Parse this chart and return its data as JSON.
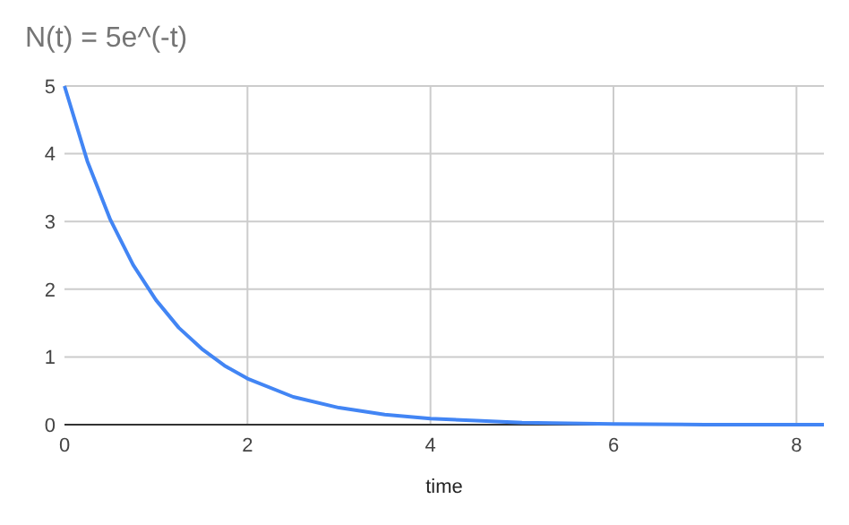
{
  "chart_data": {
    "type": "line",
    "title": "N(t) = 5e^(-t)",
    "xlabel": "time",
    "x": [
      0,
      0.25,
      0.5,
      0.75,
      1,
      1.25,
      1.5,
      1.75,
      2,
      2.5,
      3,
      3.5,
      4,
      4.5,
      5,
      5.5,
      6,
      7,
      8.3
    ],
    "series": [
      {
        "color": "#4285f4",
        "values": [
          5,
          3.89,
          3.03,
          2.36,
          1.84,
          1.43,
          1.12,
          0.87,
          0.68,
          0.41,
          0.25,
          0.15,
          0.09,
          0.06,
          0.03,
          0.02,
          0.01,
          0,
          0
        ]
      }
    ],
    "xlim": [
      0,
      8.3
    ],
    "xticks": [
      0,
      2,
      4,
      6,
      8
    ],
    "ylim": [
      0,
      5
    ],
    "yticks": [
      0,
      1,
      2,
      3,
      4,
      5
    ],
    "grid": true,
    "marker": "none",
    "line_style": "solid"
  }
}
